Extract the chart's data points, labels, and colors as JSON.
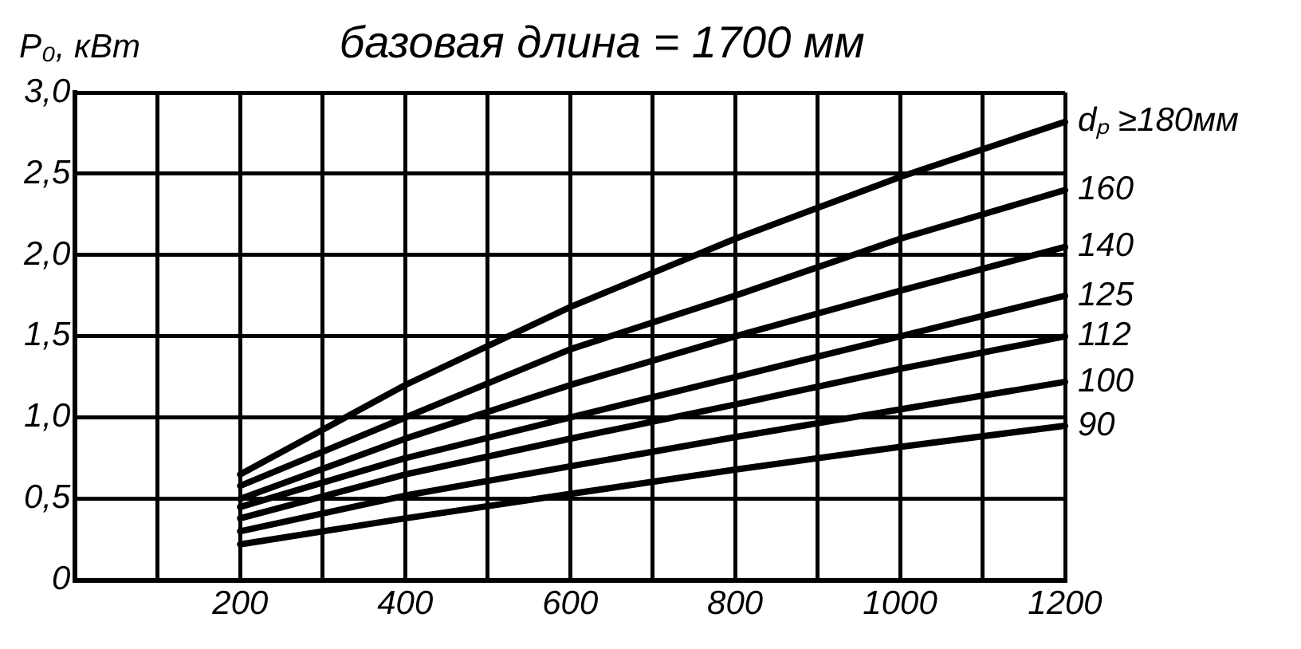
{
  "chart_data": {
    "type": "line",
    "title": "базовая длина = 1700 мм",
    "ylabel": "P₀, кВт",
    "x": [
      200,
      400,
      600,
      800,
      1000,
      1200
    ],
    "series": [
      {
        "name": "dₚ ≥180мм",
        "color": "#000000",
        "values": [
          0.65,
          1.2,
          1.68,
          2.1,
          2.48,
          2.82
        ]
      },
      {
        "name": "160",
        "color": "#000000",
        "values": [
          0.58,
          1.0,
          1.42,
          1.75,
          2.1,
          2.4
        ]
      },
      {
        "name": "140",
        "color": "#000000",
        "values": [
          0.5,
          0.87,
          1.2,
          1.5,
          1.78,
          2.05
        ]
      },
      {
        "name": "125",
        "color": "#000000",
        "values": [
          0.45,
          0.75,
          1.0,
          1.25,
          1.5,
          1.75
        ]
      },
      {
        "name": "112",
        "color": "#000000",
        "values": [
          0.38,
          0.65,
          0.87,
          1.08,
          1.3,
          1.5
        ]
      },
      {
        "name": "100",
        "color": "#000000",
        "values": [
          0.3,
          0.52,
          0.7,
          0.88,
          1.05,
          1.22
        ]
      },
      {
        "name": "90",
        "color": "#000000",
        "values": [
          0.22,
          0.38,
          0.53,
          0.68,
          0.82,
          0.95
        ]
      }
    ],
    "xlim": [
      0,
      1200
    ],
    "xticks": [
      {
        "value": 0,
        "label": null
      },
      {
        "value": 100,
        "label": null
      },
      200,
      {
        "value": 300,
        "label": null
      },
      400,
      {
        "value": 500,
        "label": null
      },
      600,
      {
        "value": 700,
        "label": null
      },
      800,
      {
        "value": 900,
        "label": null
      },
      1000,
      {
        "value": 1100,
        "label": null
      },
      1200
    ],
    "ylim": [
      0,
      3
    ],
    "yticks": [
      0,
      {
        "value": 0.5,
        "label": "0,5"
      },
      {
        "value": 1,
        "label": "1,0"
      },
      {
        "value": 1.5,
        "label": "1,5"
      },
      {
        "value": 2,
        "label": "2,0"
      },
      {
        "value": 2.5,
        "label": "2,5"
      },
      {
        "value": 3,
        "label": "3,0"
      }
    ],
    "grid": true,
    "legend": false,
    "marker": "none",
    "line_style": "solid"
  }
}
